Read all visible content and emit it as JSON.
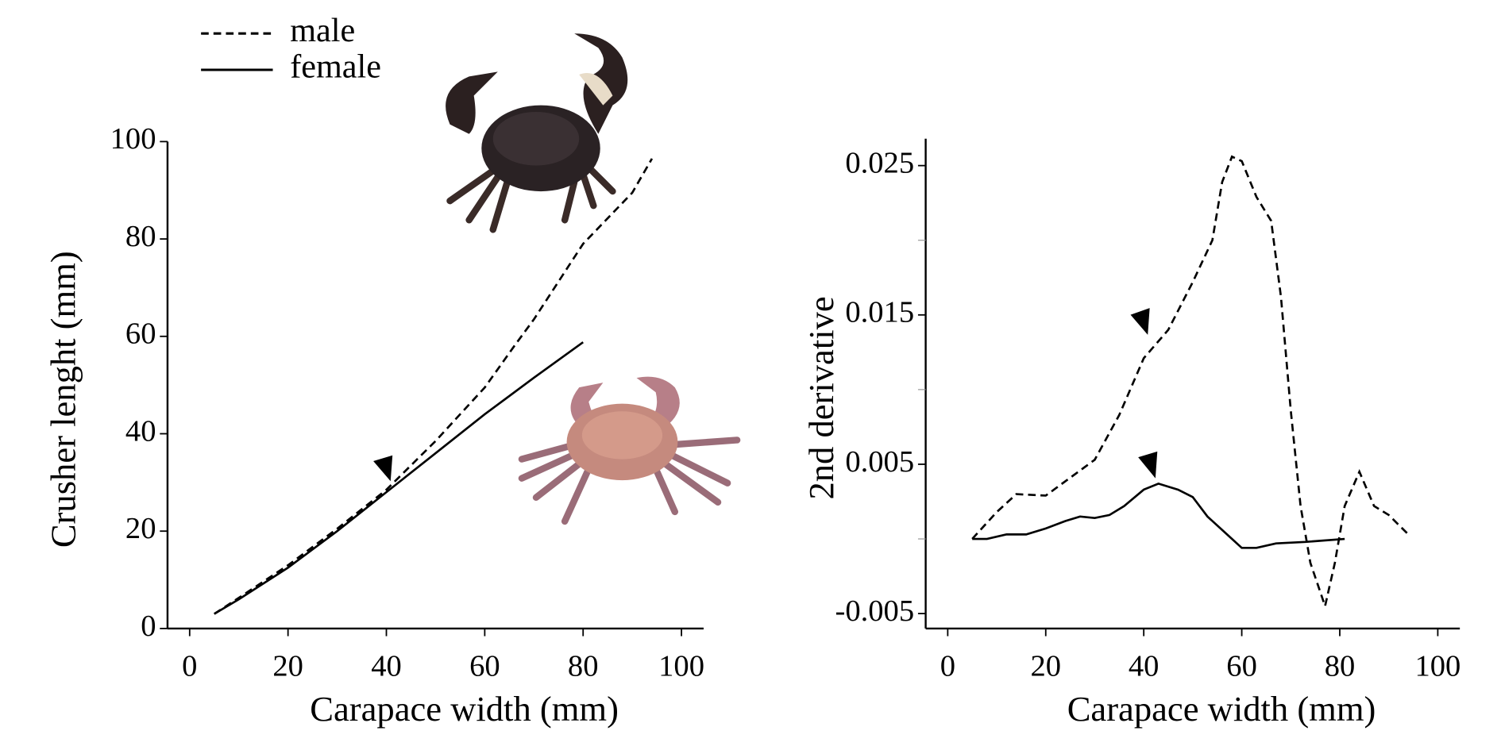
{
  "chart_data": [
    {
      "type": "line",
      "xlabel": "Carapace width (mm)",
      "ylabel": "Crusher lenght (mm)",
      "xlim": [
        -4.5,
        104.5
      ],
      "ylim": [
        0,
        100
      ],
      "xticks": [
        0,
        20,
        40,
        60,
        80,
        100
      ],
      "yticks": [
        0,
        20,
        40,
        60,
        80,
        100
      ],
      "legend": "top-left",
      "grid": false,
      "series": [
        {
          "name": "male",
          "color": "#000000",
          "line_style": "dashed",
          "x": [
            5,
            10,
            20,
            30,
            40,
            50,
            60,
            66,
            70,
            80,
            90,
            94
          ],
          "values": [
            3,
            6.3,
            13,
            20.5,
            28.5,
            38.5,
            49.5,
            58,
            63.5,
            79,
            89.5,
            96.5
          ]
        },
        {
          "name": "female",
          "color": "#000000",
          "line_style": "solid",
          "x": [
            5,
            10,
            20,
            30,
            40,
            50,
            60,
            70,
            80
          ],
          "values": [
            3,
            6,
            12.5,
            20,
            28,
            36,
            44,
            51.5,
            58.8
          ]
        }
      ]
    },
    {
      "type": "line",
      "xlabel": "Carapace width (mm)",
      "ylabel": "2nd derivative",
      "xlim": [
        -4.5,
        104.5
      ],
      "ylim": [
        -0.006,
        0.0268
      ],
      "xticks": [
        0,
        20,
        40,
        60,
        80,
        100
      ],
      "yticks": [
        -0.005,
        0.005,
        0.015,
        0.025
      ],
      "yminor_ticks": [
        0,
        0.01,
        0.02
      ],
      "grid": false,
      "series": [
        {
          "color": "#000000",
          "line_style": "dashed",
          "x": [
            5,
            10,
            14,
            20,
            25,
            30,
            35,
            40,
            45,
            50,
            54,
            56,
            58,
            60,
            63,
            66,
            68,
            70,
            72,
            74,
            77,
            79,
            81,
            84,
            87,
            90,
            94
          ],
          "values": [
            0,
            0.0018,
            0.003,
            0.0029,
            0.0041,
            0.0053,
            0.0083,
            0.0121,
            0.014,
            0.0172,
            0.02,
            0.0239,
            0.0256,
            0.0253,
            0.0229,
            0.0213,
            0.0162,
            0.0086,
            0.0022,
            -0.0016,
            -0.0045,
            -0.0016,
            0.0022,
            0.0045,
            0.0022,
            0.0016,
            0.0003
          ]
        },
        {
          "color": "#000000",
          "line_style": "solid",
          "x": [
            5,
            8,
            12,
            16,
            20,
            24,
            27,
            30,
            33,
            36,
            40,
            43,
            47,
            50,
            53,
            57,
            60,
            63,
            67,
            73,
            81
          ],
          "values": [
            0,
            0,
            0.0003,
            0.0003,
            0.0007,
            0.0012,
            0.0015,
            0.0014,
            0.0016,
            0.0022,
            0.0033,
            0.0037,
            0.0033,
            0.0028,
            0.0015,
            0.0003,
            -0.0006,
            -0.0006,
            -0.0003,
            -0.0002,
            0
          ]
        }
      ]
    }
  ]
}
